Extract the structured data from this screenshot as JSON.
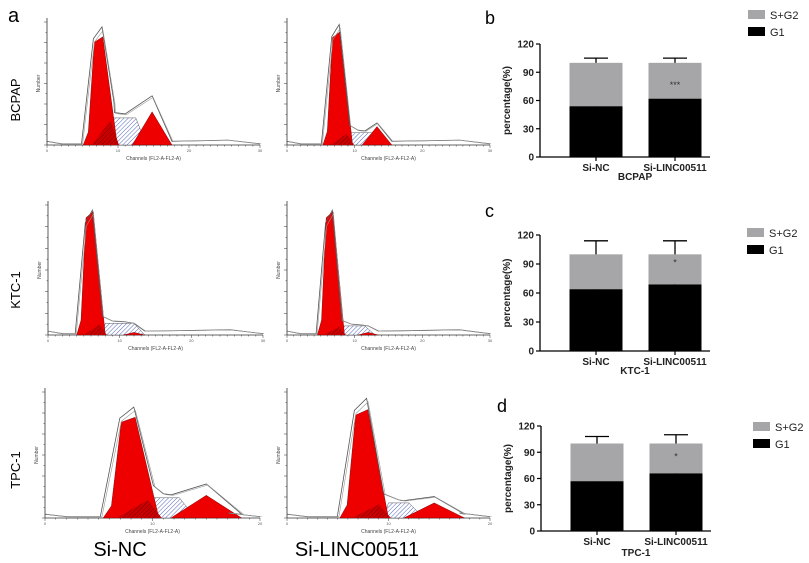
{
  "panel_labels": {
    "a": "a",
    "b": "b",
    "c": "c",
    "d": "d"
  },
  "flow": {
    "row_labels": [
      "BCPAP",
      "KTC-1",
      "TPC-1"
    ],
    "column_labels": [
      "Si-NC",
      "Si-LINC00511"
    ],
    "xlabel": "Channels (FL2-A-FL2-A)",
    "ylabel": "Number",
    "colors": {
      "g1": "#ee0000",
      "s_hatch": "#5566bb",
      "outline": "#555555"
    },
    "histograms": [
      {
        "row": "BCPAP",
        "group": "Si-NC",
        "xticks": [
          "0",
          "10",
          "20",
          "30"
        ],
        "xmax": 30,
        "g1": {
          "center": 7.5,
          "width": 2.4,
          "height": 88,
          "outline": 96
        },
        "s": {
          "from": 8,
          "to": 14,
          "height": 22
        },
        "g2": {
          "center": 14.8,
          "width": 2.8,
          "height": 27,
          "outline": 40
        }
      },
      {
        "row": "BCPAP",
        "group": "Si-LINC00511",
        "xticks": [
          "0",
          "10",
          "20",
          "30"
        ],
        "xmax": 30,
        "g1": {
          "center": 7.5,
          "width": 2.2,
          "height": 92,
          "outline": 98
        },
        "s": {
          "from": 9,
          "to": 14,
          "height": 10
        },
        "g2": {
          "center": 13.3,
          "width": 2.2,
          "height": 15,
          "outline": 18
        }
      },
      {
        "row": "KTC-1",
        "group": "Si-NC",
        "xticks": [
          "0",
          "10",
          "20",
          "30"
        ],
        "xmax": 30,
        "g1": {
          "center": 6,
          "width": 2,
          "height": 95,
          "outline": 96
        },
        "s": {
          "from": 7.5,
          "to": 13.5,
          "height": 9
        },
        "g2": {
          "center": 12,
          "width": 1.5,
          "height": 2,
          "outline": 9
        }
      },
      {
        "row": "KTC-1",
        "group": "Si-LINC00511",
        "xticks": [
          "0",
          "10",
          "20",
          "30"
        ],
        "xmax": 30,
        "g1": {
          "center": 6.5,
          "width": 2,
          "height": 95,
          "outline": 96
        },
        "s": {
          "from": 8,
          "to": 13,
          "height": 7
        },
        "g2": {
          "center": 12,
          "width": 1.5,
          "height": 2,
          "outline": 7
        }
      },
      {
        "row": "TPC-1",
        "group": "Si-NC",
        "xticks": [
          "0",
          "10",
          "20"
        ],
        "xmax": 20,
        "g1": {
          "center": 8,
          "width": 2.6,
          "height": 80,
          "outline": 88
        },
        "s": {
          "from": 9.5,
          "to": 14,
          "height": 16
        },
        "g2": {
          "center": 15,
          "width": 3.3,
          "height": 18,
          "outline": 27
        }
      },
      {
        "row": "TPC-1",
        "group": "Si-LINC00511",
        "xticks": [
          "0",
          "10",
          "20"
        ],
        "xmax": 20,
        "g1": {
          "center": 7.6,
          "width": 2.4,
          "height": 86,
          "outline": 95
        },
        "s": {
          "from": 9.5,
          "to": 13.5,
          "height": 12
        },
        "g2": {
          "center": 14.5,
          "width": 3,
          "height": 12,
          "outline": 17
        }
      }
    ]
  },
  "chart_data": [
    {
      "type": "bar",
      "stacked": true,
      "panel": "b",
      "title": "",
      "xlabel": "BCPAP",
      "ylabel": "percentage(%)",
      "ylim": [
        0,
        120
      ],
      "yticks": [
        "0",
        "30",
        "60",
        "90",
        "120"
      ],
      "categories": [
        "Si-NC",
        "Si-LINC00511"
      ],
      "series": [
        {
          "name": "G1",
          "values": [
            54,
            62
          ],
          "errors": [
            5,
            5
          ],
          "color": "#000000"
        },
        {
          "name": "S+G2",
          "values": [
            46,
            38
          ],
          "errors": [
            5,
            5
          ],
          "color": "#a6a6a8"
        }
      ],
      "annotations": [
        "",
        "***"
      ],
      "legend": "top-right"
    },
    {
      "type": "bar",
      "stacked": true,
      "panel": "c",
      "title": "",
      "xlabel": "KTC-1",
      "ylabel": "percentage(%)",
      "ylim": [
        0,
        120
      ],
      "yticks": [
        "0",
        "30",
        "60",
        "90",
        "120"
      ],
      "categories": [
        "Si-NC",
        "Si-LINC00511"
      ],
      "series": [
        {
          "name": "G1",
          "values": [
            64,
            69
          ],
          "errors": [
            14,
            13
          ],
          "color": "#000000"
        },
        {
          "name": "S+G2",
          "values": [
            36,
            31
          ],
          "errors": [
            14,
            14
          ],
          "color": "#a6a6a8"
        }
      ],
      "annotations": [
        "",
        "*"
      ],
      "legend": "top-right"
    },
    {
      "type": "bar",
      "stacked": true,
      "panel": "d",
      "title": "",
      "xlabel": "TPC-1",
      "ylabel": "percentage(%)",
      "ylim": [
        0,
        120
      ],
      "yticks": [
        "0",
        "30",
        "60",
        "90",
        "120"
      ],
      "categories": [
        "Si-NC",
        "Si-LINC00511"
      ],
      "series": [
        {
          "name": "G1",
          "values": [
            57,
            66
          ],
          "errors": [
            8,
            9
          ],
          "color": "#000000"
        },
        {
          "name": "S+G2",
          "values": [
            43,
            34
          ],
          "errors": [
            8,
            10
          ],
          "color": "#a6a6a8"
        }
      ],
      "annotations": [
        "",
        "*"
      ],
      "legend": "top-right"
    }
  ]
}
